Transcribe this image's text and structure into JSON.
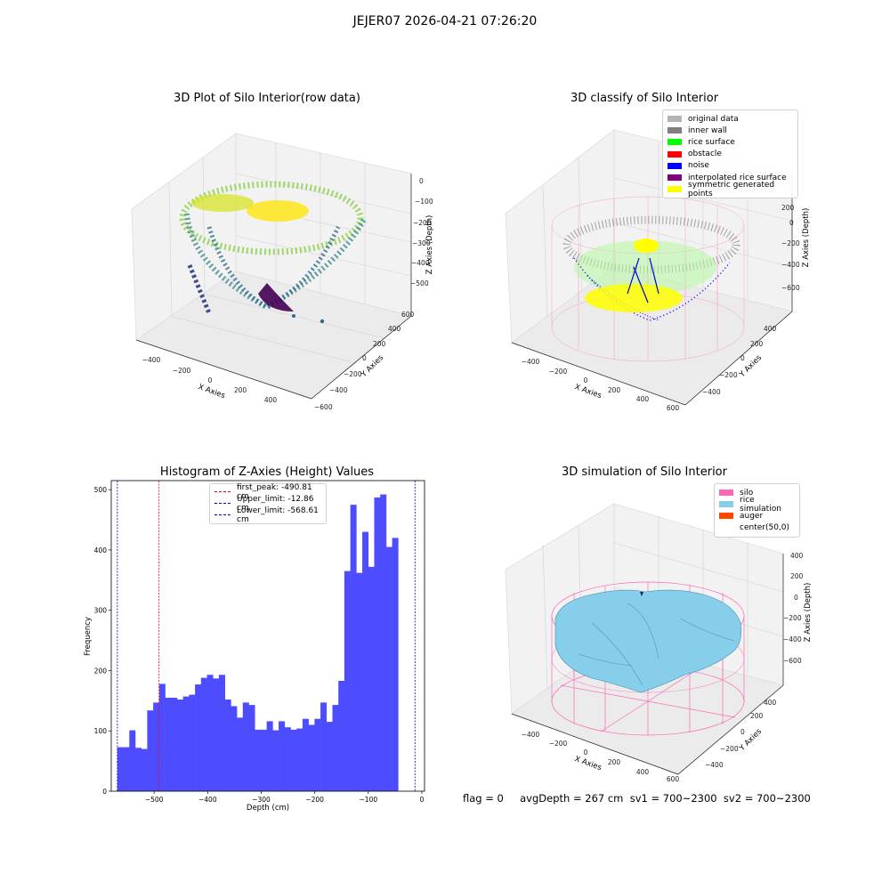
{
  "figure": {
    "suptitle": "JEJER07 2026-04-21 07:26:20",
    "footer": "flag = 0     avgDepth = 267 cm  sv1 = 700~2300  sv2 = 700~2300"
  },
  "panels": {
    "raw": {
      "title": "3D Plot of Silo Interior(row data)",
      "xlabel": "X Axies",
      "ylabel": "Y Axies",
      "zlabel": "Z Axies (Depth)",
      "xticks": [
        "−400",
        "−200",
        "0",
        "200",
        "400"
      ],
      "yticks": [
        "−600",
        "−400",
        "−200",
        "0",
        "200",
        "400",
        "600"
      ],
      "zticks": [
        "0",
        "−100",
        "−200",
        "−300",
        "−400",
        "−500"
      ]
    },
    "classify": {
      "title": "3D classify of Silo Interior",
      "xlabel": "X Axies",
      "ylabel": "Y Axies",
      "zlabel": "Z Axies (Depth)",
      "xticks": [
        "−400",
        "−200",
        "0",
        "200",
        "400",
        "600"
      ],
      "yticks": [
        "−400",
        "−200",
        "0",
        "200",
        "400"
      ],
      "zticks": [
        "200",
        "0",
        "−200",
        "−400",
        "−600"
      ],
      "legend": [
        {
          "label": "original data",
          "color": "#b3b3b3"
        },
        {
          "label": "inner wall",
          "color": "#808080"
        },
        {
          "label": "rice surface",
          "color": "#00ff00"
        },
        {
          "label": "obstacle",
          "color": "#ff0000"
        },
        {
          "label": "noise",
          "color": "#0000ff"
        },
        {
          "label": "interpolated rice surface",
          "color": "#800080"
        },
        {
          "label": "symmetric generated points",
          "color": "#ffff00"
        }
      ]
    },
    "histogram": {
      "title": "Histogram of Z-Axies (Height) Values",
      "xlabel": "Depth (cm)",
      "ylabel": "Frequency",
      "xticks": [
        "−500",
        "−400",
        "−300",
        "−200",
        "−100",
        "0"
      ],
      "yticks": [
        "0",
        "100",
        "200",
        "300",
        "400",
        "500"
      ],
      "legend": [
        {
          "label": "first_peak: -490.81 cm",
          "color": "#ff0000"
        },
        {
          "label": "Upper_limit: -12.86 cm",
          "color": "#0000cc"
        },
        {
          "label": "Lower_limit: -568.61 cm",
          "color": "#0000cc"
        }
      ]
    },
    "simulation": {
      "title": "3D simulation of Silo Interior",
      "xlabel": "X Axies",
      "ylabel": "Y Axies",
      "zlabel": "Z Axies (Depth)",
      "xticks": [
        "−400",
        "−200",
        "0",
        "200",
        "400",
        "600"
      ],
      "yticks": [
        "−400",
        "−200",
        "0",
        "200",
        "400"
      ],
      "zticks": [
        "400",
        "200",
        "0",
        "−200",
        "−400",
        "−600"
      ],
      "legend": [
        {
          "label": "silo",
          "color": "#ff69b4"
        },
        {
          "label": "rice simulation",
          "color": "#87ceeb"
        },
        {
          "label": "auger",
          "color": "#ff4500"
        },
        {
          "label": "center(50,0)",
          "color": "#ffffff"
        }
      ]
    }
  },
  "chart_data": [
    {
      "type": "scatter",
      "title": "3D Plot of Silo Interior(row data)",
      "xlabel": "X Axies",
      "ylabel": "Y Axies",
      "zlabel": "Z Axies (Depth)",
      "xlim": [
        -500,
        500
      ],
      "ylim": [
        -600,
        600
      ],
      "zlim": [
        -570,
        0
      ],
      "colormap": "viridis"
    },
    {
      "type": "scatter",
      "title": "3D classify of Silo Interior",
      "xlabel": "X Axies",
      "ylabel": "Y Axies",
      "zlabel": "Z Axies (Depth)",
      "xlim": [
        -500,
        650
      ],
      "ylim": [
        -500,
        500
      ],
      "zlim": [
        -700,
        300
      ],
      "series": [
        {
          "name": "original data"
        },
        {
          "name": "inner wall"
        },
        {
          "name": "rice surface"
        },
        {
          "name": "obstacle"
        },
        {
          "name": "noise"
        },
        {
          "name": "interpolated rice surface"
        },
        {
          "name": "symmetric generated points"
        }
      ]
    },
    {
      "type": "bar",
      "title": "Histogram of Z-Axies (Height) Values",
      "xlabel": "Depth (cm)",
      "ylabel": "Frequency",
      "x_start": -568.61,
      "bin_width": 11.155,
      "values": [
        73,
        73,
        101,
        72,
        70,
        134,
        147,
        178,
        155,
        155,
        152,
        157,
        160,
        177,
        188,
        193,
        187,
        193,
        152,
        141,
        122,
        147,
        143,
        102,
        102,
        116,
        101,
        116,
        106,
        102,
        104,
        120,
        110,
        120,
        147,
        115,
        143,
        183,
        365,
        475,
        362,
        430,
        372,
        487,
        492,
        405,
        420,
        0
      ],
      "xlim": [
        -580,
        5
      ],
      "ylim": [
        0,
        515
      ],
      "vlines": [
        {
          "label": "first_peak: -490.81 cm",
          "x": -490.81,
          "color": "#ff0000"
        },
        {
          "label": "Upper_limit: -12.86 cm",
          "x": -12.86,
          "color": "#0000cc"
        },
        {
          "label": "Lower_limit: -568.61 cm",
          "x": -568.61,
          "color": "#0000cc"
        }
      ],
      "bar_color": "#4d4dff"
    },
    {
      "type": "area",
      "title": "3D simulation of Silo Interior",
      "xlabel": "X Axies",
      "ylabel": "Y Axies",
      "zlabel": "Z Axies (Depth)",
      "xlim": [
        -500,
        650
      ],
      "ylim": [
        -500,
        500
      ],
      "zlim": [
        -700,
        500
      ],
      "series": [
        {
          "name": "silo"
        },
        {
          "name": "rice simulation"
        },
        {
          "name": "auger"
        },
        {
          "name": "center(50,0)"
        }
      ]
    }
  ]
}
